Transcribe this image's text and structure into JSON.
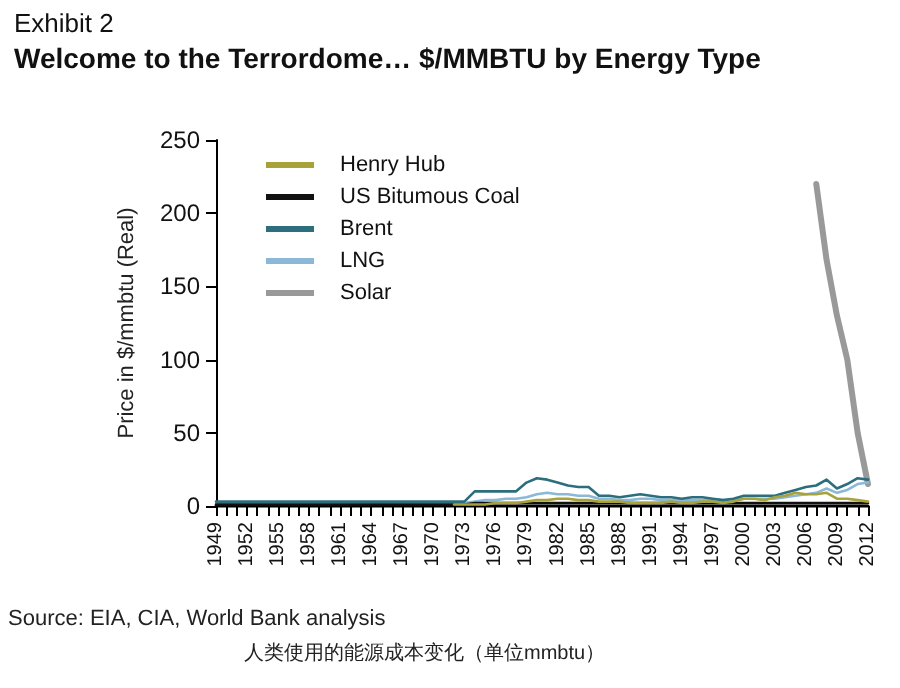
{
  "chart_data": {
    "type": "line",
    "title": "Exhibit 2",
    "subtitle": "Welcome to the Terrordome… $/MMBTU by Energy Type",
    "ylabel": "Price in $/mmbtu (Real)",
    "annotations": [
      "Source: EIA, CIA, World Bank analysis",
      "人类使用的能源成本变化（单位mmbtu）"
    ],
    "categories": [
      "1949",
      null,
      null,
      "1952",
      null,
      null,
      "1955",
      null,
      null,
      "1958",
      null,
      null,
      "1961",
      null,
      null,
      "1964",
      null,
      null,
      "1967",
      null,
      null,
      "1970",
      null,
      null,
      "1973",
      null,
      null,
      "1976",
      null,
      null,
      "1979",
      null,
      null,
      "1982",
      null,
      null,
      "1985",
      null,
      null,
      "1988",
      null,
      null,
      "1991",
      null,
      null,
      "1994",
      null,
      null,
      "1997",
      null,
      null,
      "2000",
      null,
      null,
      "2003",
      null,
      null,
      "2006",
      null,
      null,
      "2009",
      null,
      null,
      "2012"
    ],
    "series": [
      {
        "name": "Henry Hub",
        "color": "#a8a23a",
        "values": [
          null,
          null,
          null,
          null,
          null,
          null,
          null,
          null,
          null,
          null,
          null,
          null,
          null,
          null,
          null,
          null,
          null,
          null,
          null,
          null,
          null,
          null,
          null,
          1,
          1,
          1,
          1,
          2,
          2,
          2,
          3,
          4,
          4,
          5,
          5,
          4,
          4,
          3,
          3,
          3,
          2,
          2,
          2,
          2,
          3,
          2,
          2,
          3,
          3,
          2,
          3,
          5,
          5,
          4,
          6,
          7,
          9,
          8,
          8,
          9,
          5,
          5,
          4,
          3
        ]
      },
      {
        "name": "US Bitumous Coal",
        "color": "#111111",
        "values": [
          1,
          1,
          1,
          1,
          1,
          1,
          1,
          1,
          1,
          1,
          1,
          1,
          1,
          1,
          1,
          1,
          1,
          1,
          1,
          1,
          1,
          1,
          1,
          1,
          1,
          2,
          2,
          2,
          2,
          2,
          2,
          2,
          2,
          2,
          2,
          2,
          2,
          2,
          2,
          2,
          2,
          2,
          2,
          2,
          2,
          2,
          2,
          2,
          2,
          2,
          2,
          2,
          2,
          2,
          2,
          2,
          2,
          2,
          2,
          2,
          2,
          2,
          2,
          2
        ]
      },
      {
        "name": "Brent",
        "color": "#2c6e7e",
        "values": [
          3,
          3,
          3,
          3,
          3,
          3,
          3,
          3,
          3,
          3,
          3,
          3,
          3,
          3,
          3,
          3,
          3,
          3,
          3,
          3,
          3,
          3,
          3,
          3,
          3,
          10,
          10,
          10,
          10,
          10,
          16,
          19,
          18,
          16,
          14,
          13,
          13,
          7,
          7,
          6,
          7,
          8,
          7,
          6,
          6,
          5,
          6,
          6,
          5,
          4,
          5,
          7,
          7,
          7,
          7,
          9,
          11,
          13,
          14,
          18,
          12,
          15,
          19,
          18
        ]
      },
      {
        "name": "LNG",
        "color": "#8ab8d6",
        "values": [
          2,
          2,
          2,
          2,
          2,
          2,
          2,
          2,
          2,
          2,
          2,
          2,
          2,
          2,
          2,
          2,
          2,
          2,
          2,
          2,
          2,
          2,
          2,
          2,
          2,
          3,
          4,
          4,
          5,
          5,
          6,
          8,
          9,
          8,
          8,
          7,
          7,
          5,
          5,
          4,
          4,
          5,
          5,
          4,
          4,
          4,
          4,
          4,
          4,
          4,
          4,
          5,
          5,
          5,
          5,
          6,
          7,
          8,
          9,
          12,
          9,
          11,
          15,
          16
        ]
      },
      {
        "name": "Solar",
        "color": "#999999",
        "values": [
          null,
          null,
          null,
          null,
          null,
          null,
          null,
          null,
          null,
          null,
          null,
          null,
          null,
          null,
          null,
          null,
          null,
          null,
          null,
          null,
          null,
          null,
          null,
          null,
          null,
          null,
          null,
          null,
          null,
          null,
          null,
          null,
          null,
          null,
          null,
          null,
          null,
          null,
          null,
          null,
          null,
          null,
          null,
          null,
          null,
          null,
          null,
          null,
          null,
          null,
          null,
          null,
          null,
          null,
          null,
          null,
          null,
          null,
          220,
          168,
          130,
          100,
          50,
          15
        ]
      }
    ],
    "ylim": [
      0,
      250
    ],
    "yticks": [
      0,
      50,
      100,
      150,
      200,
      250
    ],
    "grid": false,
    "legend": "top left",
    "marker": "none",
    "line_style": "solid"
  }
}
